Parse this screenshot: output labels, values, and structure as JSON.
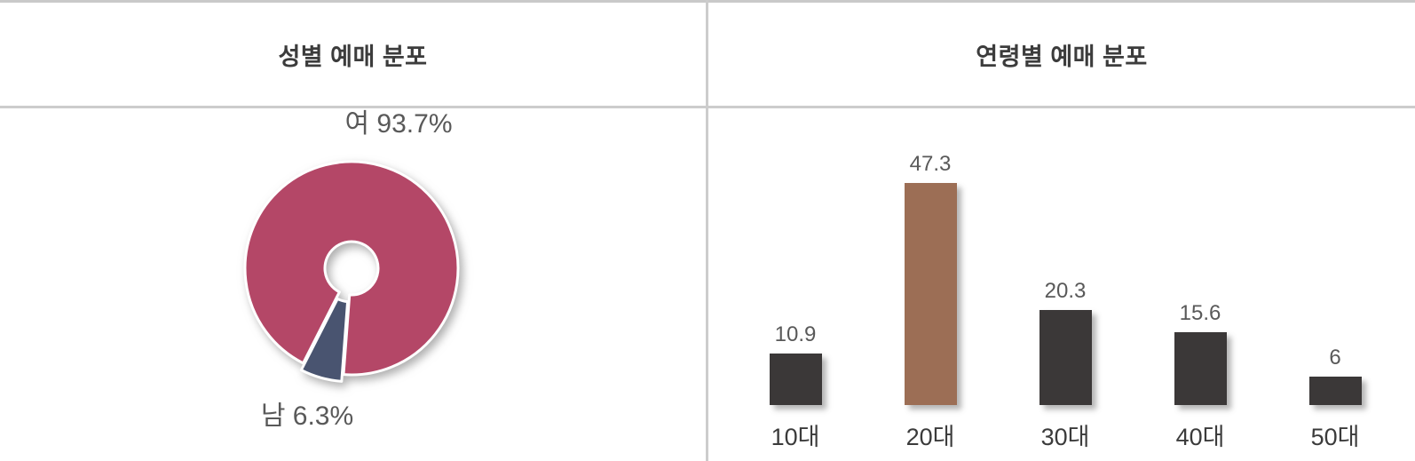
{
  "panels": {
    "gender": {
      "title": "성별 예매 분포"
    },
    "age": {
      "title": "연령별 예매 분포"
    }
  },
  "chart_data": [
    {
      "type": "pie",
      "subtype": "donut",
      "title": "성별 예매 분포",
      "labels": [
        "여",
        "남"
      ],
      "values": [
        93.7,
        6.3
      ],
      "unit": "%",
      "value_labels": {
        "female": "여 93.7%",
        "male": "남 6.3%"
      },
      "colors": [
        "#b44767",
        "#495470"
      ],
      "start_angle_deg": 207,
      "exploded_slice": "남",
      "legend_position": "none"
    },
    {
      "type": "bar",
      "title": "연령별 예매 분포",
      "categories": [
        "10대",
        "20대",
        "30대",
        "40대",
        "50대"
      ],
      "values": [
        10.9,
        47.3,
        20.3,
        15.6,
        6
      ],
      "colors": [
        "#3b3838",
        "#9c6e55",
        "#3b3838",
        "#3b3838",
        "#3b3838"
      ],
      "highlight_index": 1,
      "xlabel": "",
      "ylabel": "",
      "ylim": [
        0,
        50
      ],
      "grid": false,
      "legend_position": "none"
    }
  ],
  "frame_colors": {
    "border": "#c9c9c9",
    "divider": "#cccccc"
  }
}
